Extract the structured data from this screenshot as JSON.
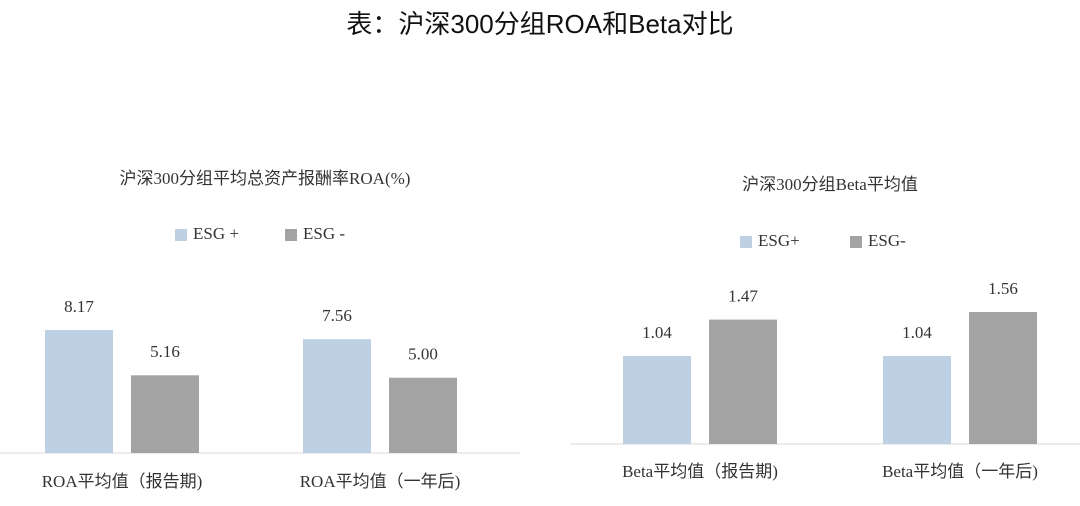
{
  "title": "表：沪深300分组ROA和Beta对比",
  "chart_data": [
    {
      "type": "bar",
      "title": "沪深300分组平均总资产报酬率ROA(%)",
      "categories": [
        "ROA平均值（报告期)",
        "ROA平均值（一年后)"
      ],
      "series": [
        {
          "name": "ESG +",
          "color": "#bed1e4",
          "values": [
            8.17,
            7.56
          ]
        },
        {
          "name": "ESG -",
          "color": "#a3a3a3",
          "values": [
            5.16,
            5.0
          ],
          "value_labels": [
            "5.16",
            "5.00"
          ]
        }
      ]
    },
    {
      "type": "bar",
      "title": "沪深300分组Beta平均值",
      "categories": [
        "Beta平均值（报告期)",
        "Beta平均值（一年后)"
      ],
      "series": [
        {
          "name": "ESG+",
          "color": "#bed1e4",
          "values": [
            1.04,
            1.04
          ]
        },
        {
          "name": "ESG-",
          "color": "#a3a3a3",
          "values": [
            1.47,
            1.56
          ]
        }
      ]
    }
  ]
}
